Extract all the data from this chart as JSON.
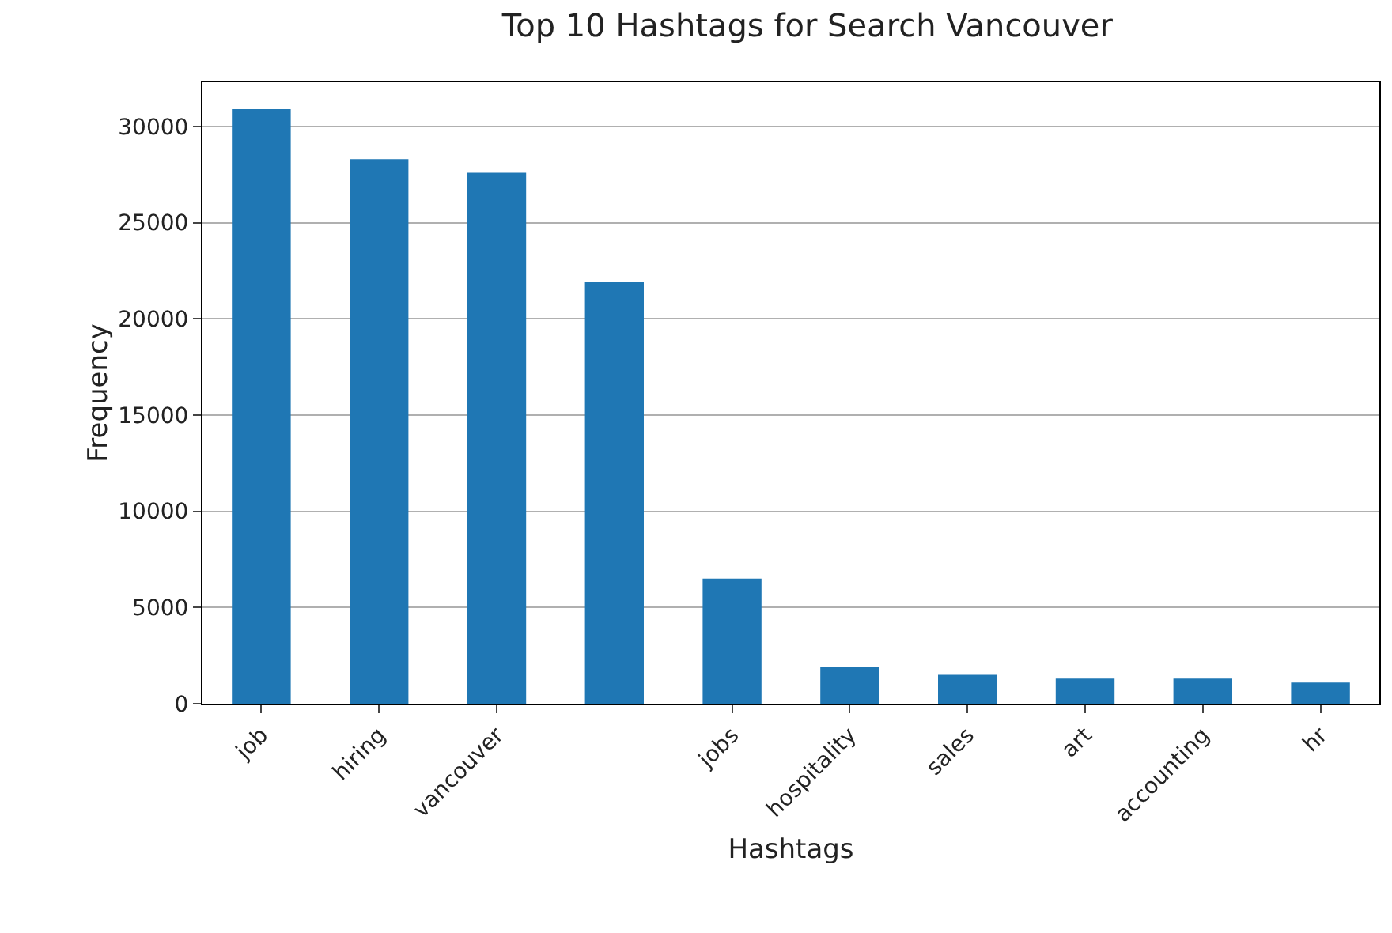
{
  "chart_data": {
    "type": "bar",
    "title": "Top 10 Hashtags for Search Vancouver",
    "xlabel": "Hashtags",
    "ylabel": "Frequency",
    "categories": [
      "job",
      "hiring",
      "vancouver",
      null,
      "jobs",
      "hospitality",
      "sales",
      "art",
      "accounting",
      "hr"
    ],
    "values": [
      30900,
      28300,
      27600,
      21900,
      6500,
      1900,
      1500,
      1300,
      1300,
      1100
    ],
    "color": "#1f77b4",
    "ylim": [
      0,
      32300
    ],
    "yticks": [
      0,
      5000,
      10000,
      15000,
      20000,
      25000,
      30000
    ],
    "grid": "y",
    "legend": false
  }
}
